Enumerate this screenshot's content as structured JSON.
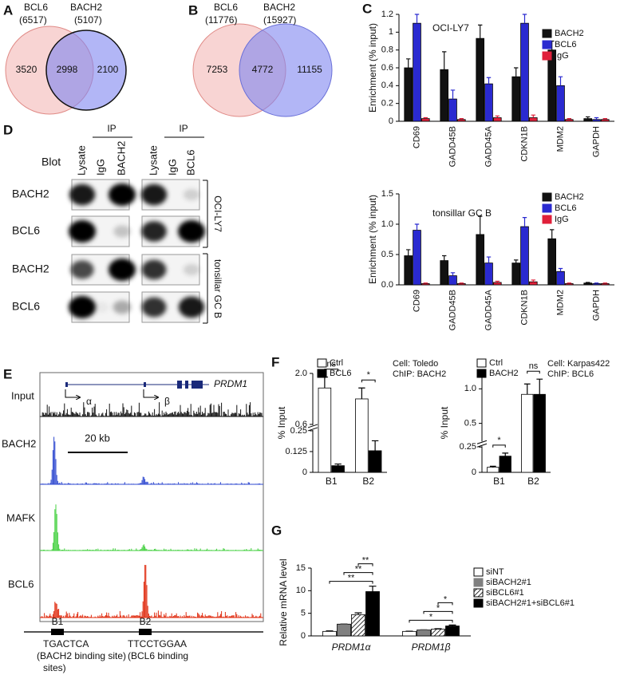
{
  "panel_labels": [
    "A",
    "B",
    "C",
    "D",
    "E",
    "F",
    "G"
  ],
  "venn_a": {
    "left_name": "BCL6",
    "left_total": "(6517)",
    "right_name": "BACH2",
    "right_total": "(5107)",
    "left_only": "3520",
    "overlap": "2998",
    "right_only": "2100"
  },
  "venn_b": {
    "left_name": "BCL6",
    "left_total": "(11776)",
    "right_name": "BACH2",
    "right_total": "(15927)",
    "left_only": "7253",
    "overlap": "4772",
    "right_only": "11155"
  },
  "blot": {
    "ip_labels": [
      "IP",
      "IP"
    ],
    "blot_label": "Blot",
    "lanes": [
      "Lysate",
      "IgG",
      "BACH2",
      "Lysate",
      "IgG",
      "BCL6"
    ],
    "rows": [
      "BACH2",
      "BCL6",
      "BACH2",
      "BCL6"
    ],
    "groups": [
      "OCI-LY7",
      "tonsillar GC B"
    ]
  },
  "tracks": {
    "input_label": "Input",
    "gene": "PRDM1",
    "promoters": [
      "α",
      "β"
    ],
    "track_labels": [
      "BACH2",
      "MAFK",
      "BCL6"
    ],
    "scale_bar": "20 kb",
    "sites": [
      "B1",
      "B2"
    ],
    "site_sequences": [
      "TGACTCA",
      "TTCCTGGAA"
    ],
    "site_notes": [
      "(BACH2 binding site)",
      "(BCL6 binding"
    ],
    "site_notes_tail": "sites)"
  },
  "chart_data": [
    {
      "type": "bar",
      "title": "OCI-LY7",
      "y_label": "Enrichment (% input)",
      "categories": [
        "CD69",
        "GADD45B",
        "GADD45A",
        "CDKN1B",
        "MDM2",
        "GAPDH"
      ],
      "series": [
        {
          "name": "BACH2",
          "color": "#111111",
          "values": [
            0.6,
            0.58,
            0.93,
            0.5,
            0.8,
            0.03
          ],
          "errors": [
            0.1,
            0.2,
            0.15,
            0.1,
            0.1,
            0.02
          ]
        },
        {
          "name": "BCL6",
          "color": "#2a2ad0",
          "values": [
            1.1,
            0.25,
            0.42,
            1.1,
            0.4,
            0.02
          ],
          "errors": [
            0.1,
            0.1,
            0.07,
            0.1,
            0.1,
            0.02
          ]
        },
        {
          "name": "IgG",
          "color": "#e0203a",
          "values": [
            0.03,
            0.02,
            0.04,
            0.04,
            0.02,
            0.02
          ],
          "errors": [
            0.01,
            0.01,
            0.02,
            0.03,
            0.01,
            0.01
          ]
        }
      ],
      "ylim": [
        0,
        1.2
      ],
      "yticks": [
        0,
        0.2,
        0.4,
        0.6,
        0.8,
        1,
        1.2
      ],
      "legend": "upper right"
    },
    {
      "type": "bar",
      "title": "tonsillar GC B",
      "y_label": "Enrichment (% input)",
      "categories": [
        "CD69",
        "GADD45B",
        "GADD45A",
        "CDKN1B",
        "MDM2",
        "GAPDH"
      ],
      "series": [
        {
          "name": "BACH2",
          "color": "#111111",
          "values": [
            0.48,
            0.4,
            0.83,
            0.36,
            0.76,
            0.03
          ],
          "errors": [
            0.1,
            0.08,
            0.3,
            0.05,
            0.15,
            0.01
          ]
        },
        {
          "name": "BCL6",
          "color": "#2a2ad0",
          "values": [
            0.9,
            0.15,
            0.36,
            0.96,
            0.22,
            0.02
          ],
          "errors": [
            0.1,
            0.05,
            0.1,
            0.15,
            0.05,
            0.01
          ]
        },
        {
          "name": "IgG",
          "color": "#e0203a",
          "values": [
            0.02,
            0.02,
            0.04,
            0.05,
            0.02,
            0.02
          ],
          "errors": [
            0.01,
            0.01,
            0.02,
            0.03,
            0.01,
            0.01
          ]
        }
      ],
      "ylim": [
        0,
        1.5
      ],
      "yticks": [
        {
          "value": 0,
          "label": "0.0"
        },
        0.5,
        {
          "value": 1,
          "label": "1.0"
        },
        1.5
      ],
      "legend": "upper right"
    },
    {
      "type": "bar",
      "y_label": "% Input",
      "annotations": [
        "Cell: Toledo",
        "ChIP: BACH2"
      ],
      "categories": [
        "B1",
        "B2"
      ],
      "series": [
        {
          "name": "Ctrl",
          "color": "#ffffff",
          "values": [
            1.6,
            1.3
          ],
          "errors": [
            0.3,
            0.3
          ]
        },
        {
          "name": "BCL6",
          "color": "#000000",
          "values": [
            0.04,
            0.13
          ],
          "errors": [
            0.01,
            0.06
          ]
        }
      ],
      "ylim": [
        0,
        2
      ],
      "ybreak": [
        0.25,
        0.6
      ],
      "yticks": [
        0,
        0.125,
        0.25,
        0.6,
        {
          "value": 2,
          "label": "2.0"
        }
      ],
      "significance": [
        "ns",
        "*"
      ],
      "legend": "upper left"
    },
    {
      "type": "bar",
      "y_label": "% Input",
      "annotations": [
        "Cell: Karpas422",
        "ChIP: BCL6"
      ],
      "categories": [
        "B1",
        "B2"
      ],
      "series": [
        {
          "name": "Ctrl",
          "color": "#ffffff",
          "values": [
            0.05,
            0.92
          ],
          "errors": [
            0.01,
            0.15
          ]
        },
        {
          "name": "BACH2",
          "color": "#000000",
          "values": [
            0.16,
            0.92
          ],
          "errors": [
            0.03,
            0.22
          ]
        }
      ],
      "ylim": [
        0,
        1.2
      ],
      "ybreak": [
        0.25,
        0.25
      ],
      "yticks": [
        0,
        0.25,
        0.5,
        {
          "value": 1,
          "label": "1.0"
        }
      ],
      "significance": [
        "*",
        "ns"
      ],
      "legend": "upper left"
    },
    {
      "type": "bar",
      "y_label": "Relative mRNA level",
      "italic_categories": true,
      "categories": [
        "PRDM1α",
        "PRDM1β"
      ],
      "series": [
        {
          "name": "siNT",
          "color": "#ffffff",
          "values": [
            1.0,
            1.0
          ],
          "errors": [
            0.1,
            0.05
          ]
        },
        {
          "name": "siBACH2#1",
          "color": "#808080",
          "values": [
            2.6,
            1.3
          ],
          "errors": [
            0.1,
            0.1
          ]
        },
        {
          "name": "siBCL6#1",
          "color": "#ffffff",
          "pattern": "hatch",
          "values": [
            4.7,
            1.5
          ],
          "errors": [
            0.4,
            0.1
          ]
        },
        {
          "name": "siBACH2#1+siBCL6#1",
          "color": "#000000",
          "values": [
            9.8,
            2.2
          ],
          "errors": [
            1.2,
            0.2
          ]
        }
      ],
      "ylim": [
        0,
        15
      ],
      "yticks": [
        0,
        5,
        10,
        15
      ],
      "significance": [
        [
          "**",
          "**",
          "**"
        ],
        [
          "*",
          "*",
          "*"
        ]
      ],
      "legend": "upper right"
    }
  ]
}
